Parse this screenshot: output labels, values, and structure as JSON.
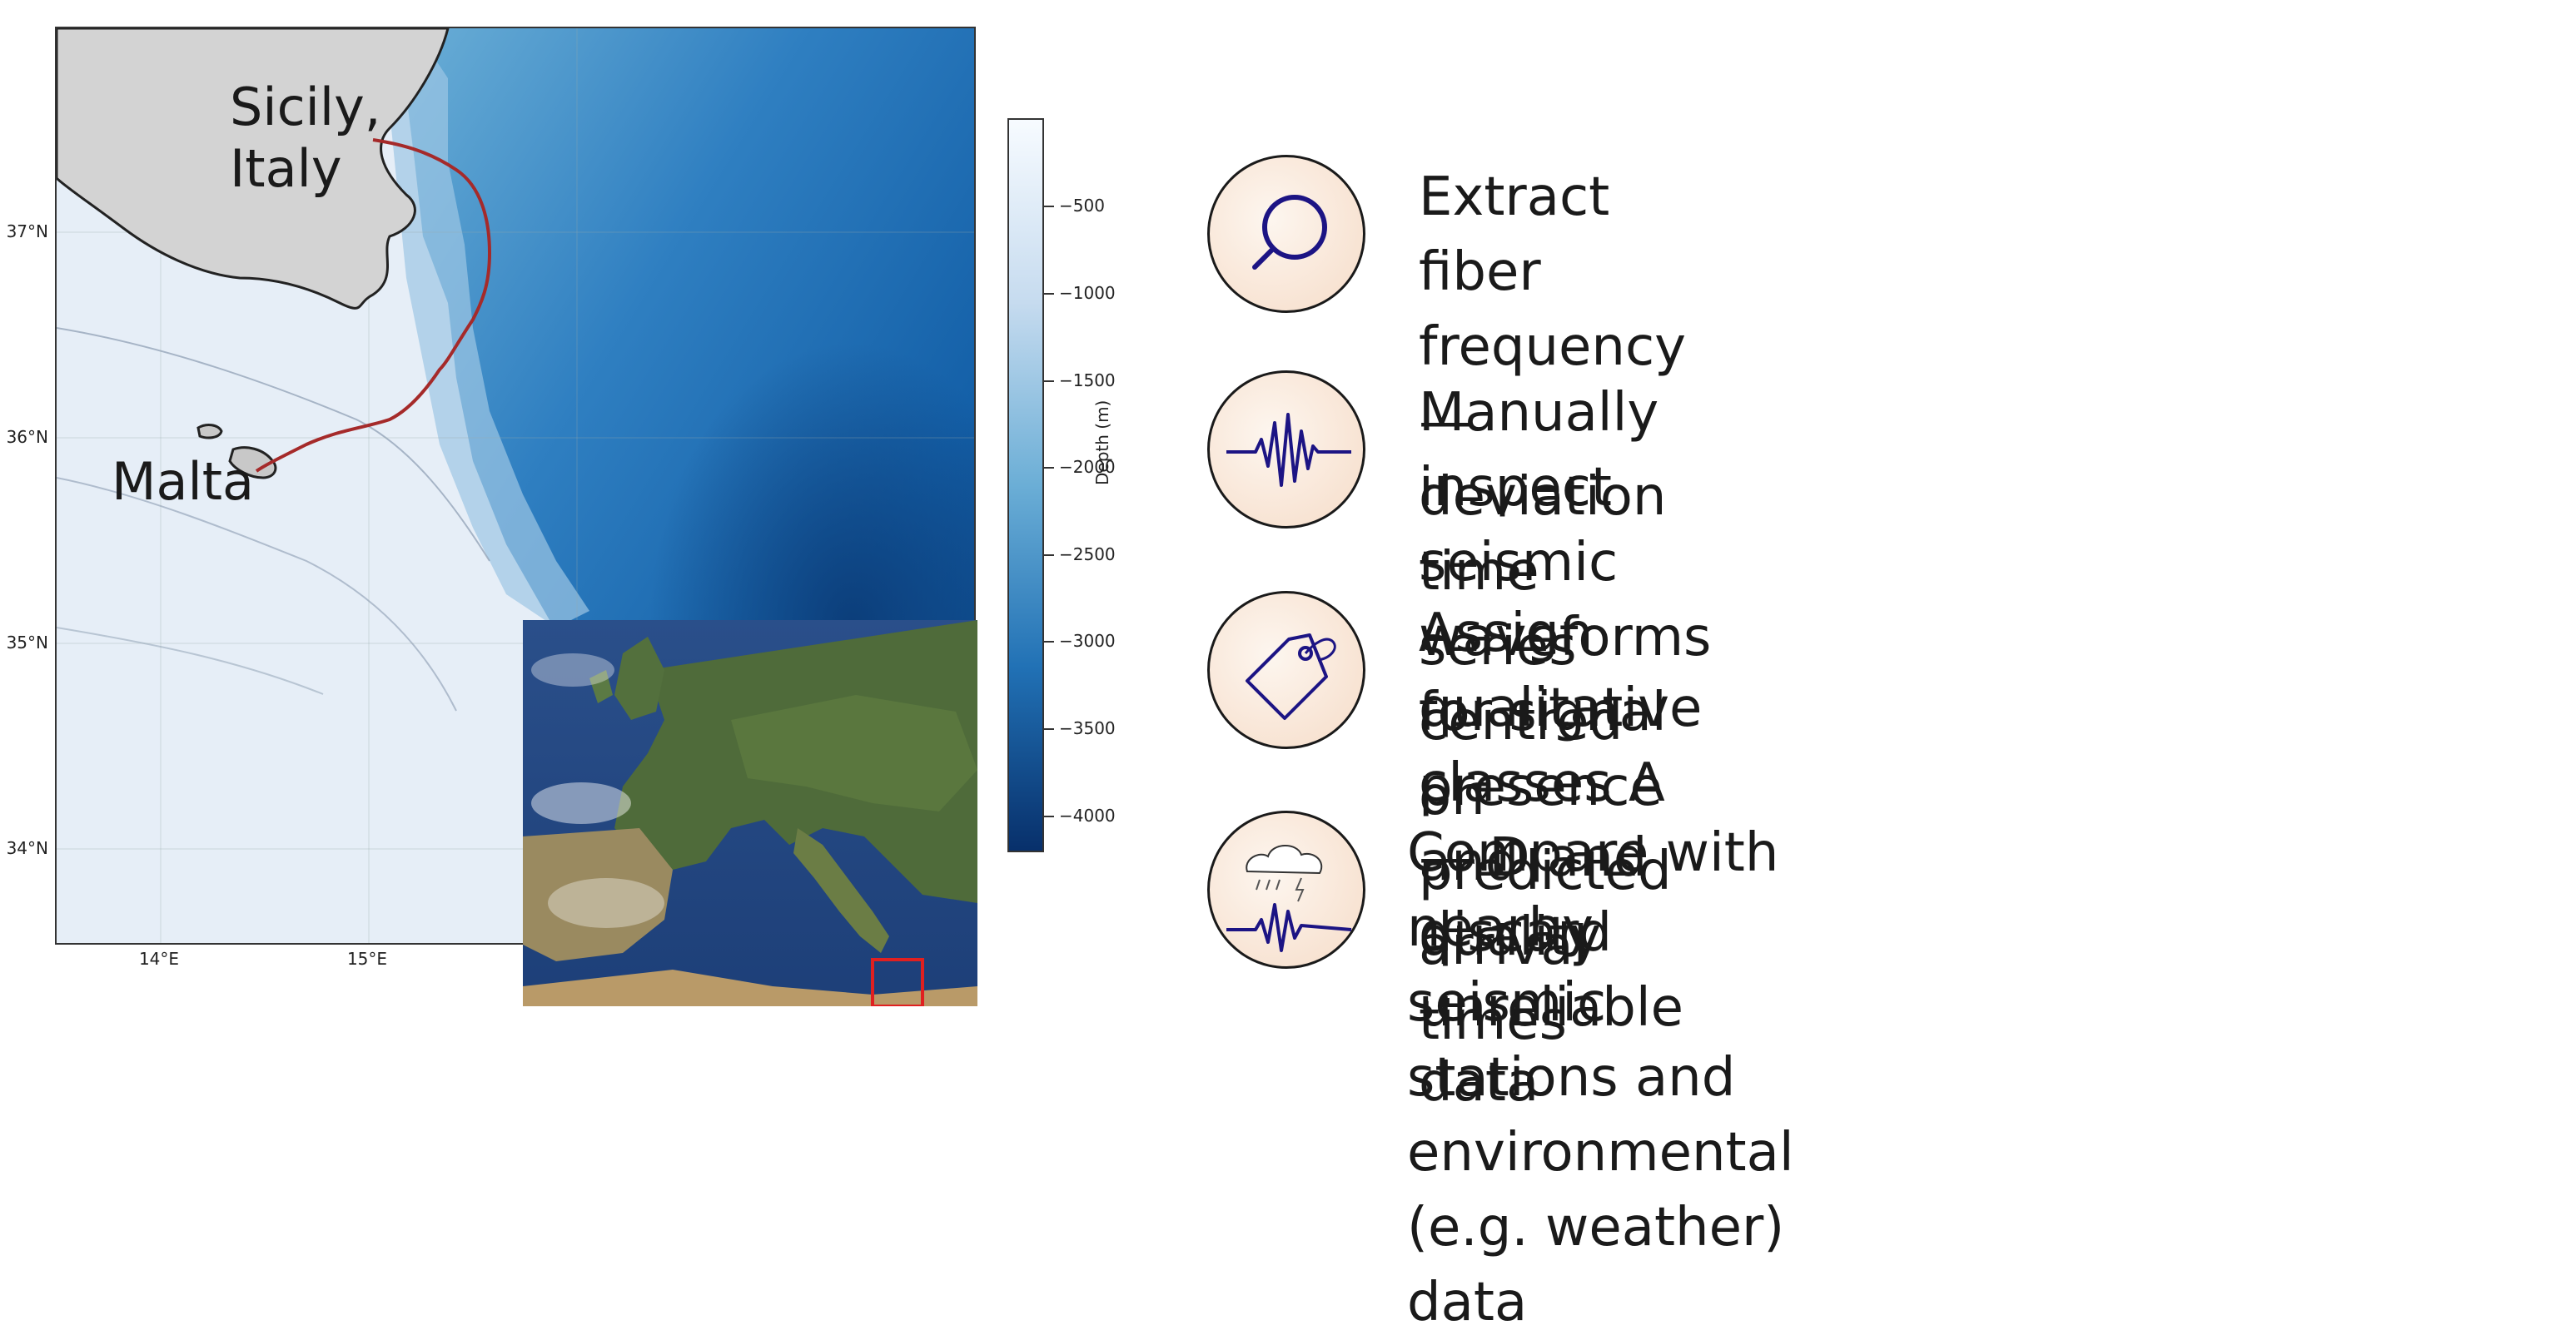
{
  "map": {
    "labels": {
      "sicily": "Sicily,\nItaly",
      "malta": "Malta"
    },
    "lat_ticks": [
      "37°N",
      "36°N",
      "35°N",
      "34°N"
    ],
    "lon_ticks": [
      "14°E",
      "15°E"
    ],
    "colors": {
      "land": "#d3d3d3",
      "cable": "#a52a2a",
      "shallow": "#e8f0f8",
      "deep": "#08306b"
    }
  },
  "colorbar": {
    "title": "Depth (m)",
    "ticks": [
      "−500",
      "−1000",
      "−1500",
      "−2000",
      "−2500",
      "−3000",
      "−3500",
      "−4000"
    ],
    "colors": [
      "#f7fbff",
      "#c6dbef",
      "#6baed6",
      "#2171b5",
      "#08306b"
    ]
  },
  "steps": [
    {
      "icon": "magnifier-icon",
      "text": "Extract fiber frequency—deviation time series\ncentred on predicted arrival times"
    },
    {
      "icon": "waveform-icon",
      "text": "Manually inspect seismic waveforms for signal\npresence and quality"
    },
    {
      "icon": "tag-icon",
      "text": "Assign qualitative classes A — D and discard\nunreliable data"
    },
    {
      "icon": "weather-waveform-icon",
      "text": "Compare with nearby seismic stations and\nenvironmental (e.g. weather) data"
    }
  ],
  "accent": "#1c1484"
}
